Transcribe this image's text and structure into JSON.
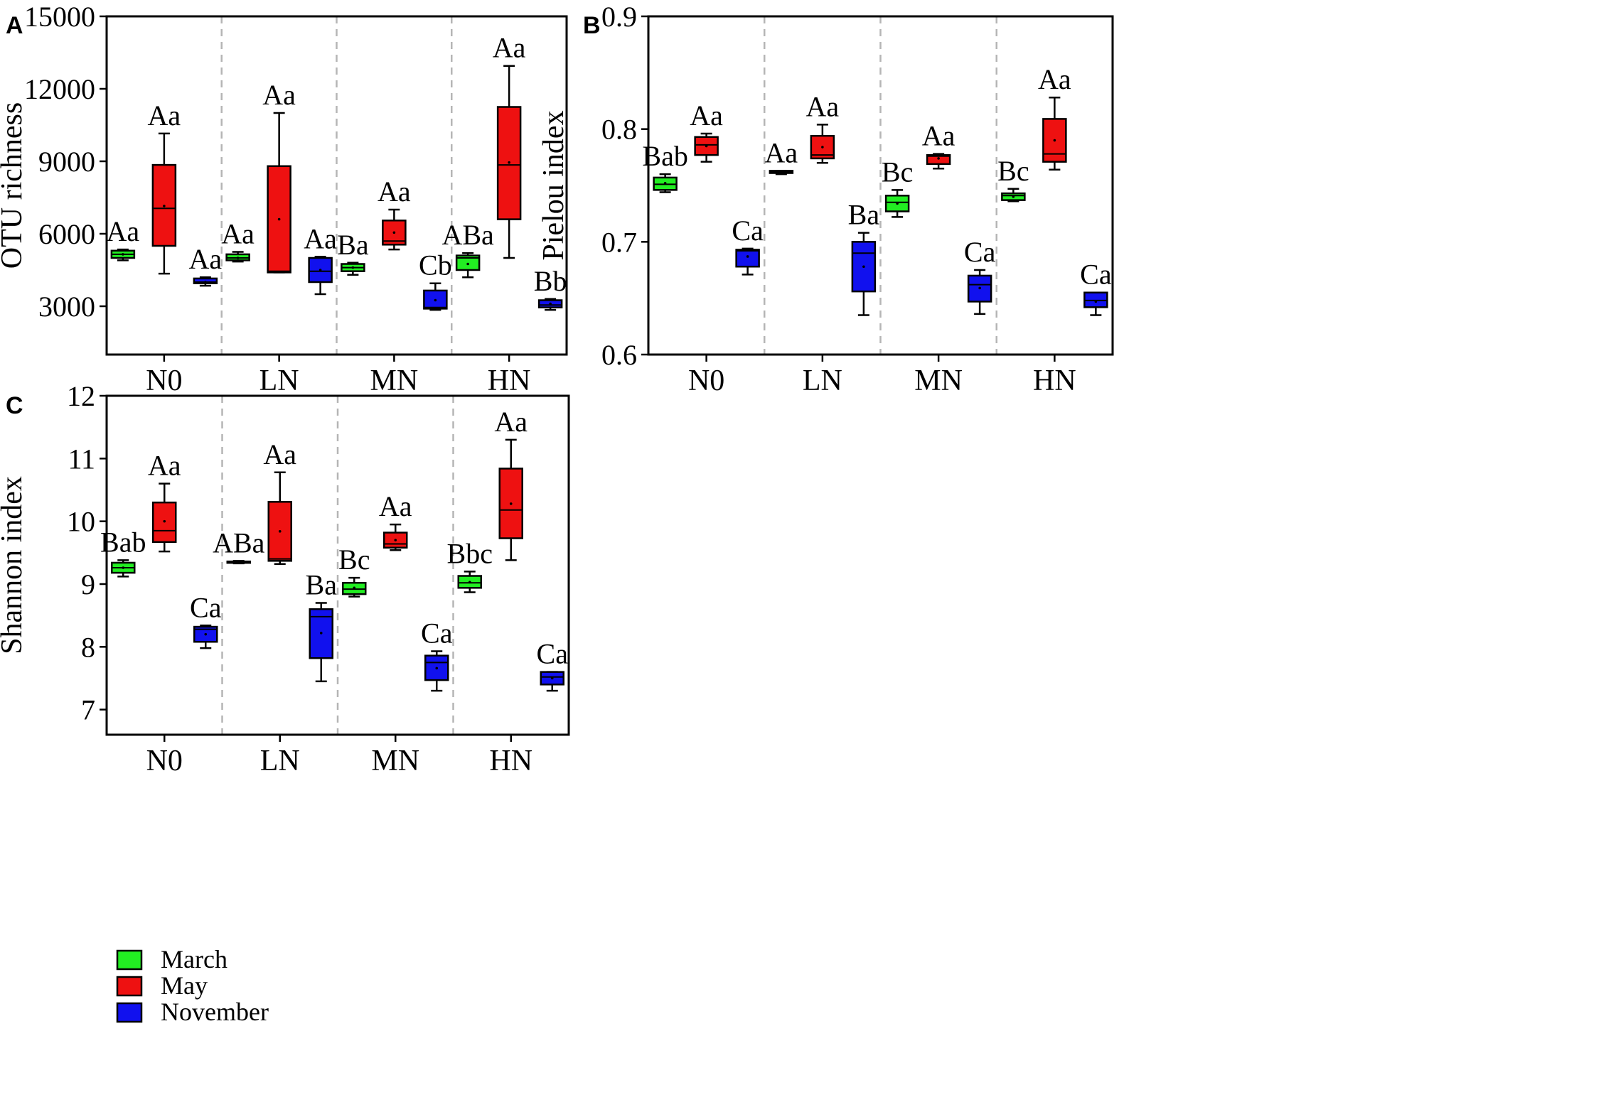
{
  "legend": {
    "items": [
      {
        "label": "March",
        "color": "#22ee22"
      },
      {
        "label": "May",
        "color": "#ee1111"
      },
      {
        "label": "November",
        "color": "#1111ee"
      }
    ]
  },
  "chart_data": [
    {
      "panel": "A",
      "type": "box",
      "ylabel": "OTU richness",
      "ylim": [
        1000,
        15000
      ],
      "yticks": [
        3000,
        6000,
        9000,
        12000,
        15000
      ],
      "ytick_labels": [
        "3000",
        "6000",
        "9000",
        "12000",
        "15000"
      ],
      "categories": [
        "N0",
        "LN",
        "MN",
        "HN"
      ],
      "grid": false,
      "series": [
        {
          "name": "March",
          "boxes": [
            {
              "min": 4900,
              "q1": 5000,
              "median": 5150,
              "q3": 5300,
              "max": 5350,
              "mean": 5150
            },
            {
              "min": 4850,
              "q1": 4900,
              "median": 5000,
              "q3": 5150,
              "max": 5250,
              "mean": 5000
            },
            {
              "min": 4300,
              "q1": 4450,
              "median": 4600,
              "q3": 4750,
              "max": 4800,
              "mean": 4600
            },
            {
              "min": 4200,
              "q1": 4500,
              "median": 5000,
              "q3": 5100,
              "max": 5200,
              "mean": 4750
            }
          ],
          "labels": [
            "Aa",
            "Aa",
            "Ba",
            "ABa"
          ]
        },
        {
          "name": "May",
          "boxes": [
            {
              "min": 4350,
              "q1": 5500,
              "median": 7050,
              "q3": 8850,
              "max": 10150,
              "mean": 7150
            },
            {
              "min": 4400,
              "q1": 4400,
              "median": 4450,
              "q3": 8800,
              "max": 11000,
              "mean": 6600
            },
            {
              "min": 5350,
              "q1": 5550,
              "median": 5700,
              "q3": 6550,
              "max": 7000,
              "mean": 6050
            },
            {
              "min": 5000,
              "q1": 6600,
              "median": 8850,
              "q3": 11250,
              "max": 12950,
              "mean": 8950
            }
          ],
          "labels": [
            "Aa",
            "Aa",
            "Aa",
            "Aa"
          ]
        },
        {
          "name": "November",
          "boxes": [
            {
              "min": 3850,
              "q1": 3950,
              "median": 4000,
              "q3": 4150,
              "max": 4200,
              "mean": 4000
            },
            {
              "min": 3500,
              "q1": 4000,
              "median": 4450,
              "q3": 5000,
              "max": 5050,
              "mean": 4500
            },
            {
              "min": 2850,
              "q1": 2900,
              "median": 2950,
              "q3": 3650,
              "max": 3950,
              "mean": 3250
            },
            {
              "min": 2850,
              "q1": 2950,
              "median": 3050,
              "q3": 3250,
              "max": 3300,
              "mean": 3100
            }
          ],
          "labels": [
            "Aa",
            "Aa",
            "Cb",
            "Bb"
          ]
        }
      ]
    },
    {
      "panel": "B",
      "type": "box",
      "ylabel": "Pielou index",
      "ylim": [
        0.6,
        0.9
      ],
      "yticks": [
        0.6,
        0.7,
        0.8,
        0.9
      ],
      "ytick_labels": [
        "0.6",
        "0.7",
        "0.8",
        "0.9"
      ],
      "categories": [
        "N0",
        "LN",
        "MN",
        "HN"
      ],
      "grid": false,
      "series": [
        {
          "name": "March",
          "boxes": [
            {
              "min": 0.744,
              "q1": 0.746,
              "median": 0.751,
              "q3": 0.757,
              "max": 0.76,
              "mean": 0.752
            },
            {
              "min": 0.76,
              "q1": 0.761,
              "median": 0.762,
              "q3": 0.763,
              "max": 0.763,
              "mean": 0.762
            },
            {
              "min": 0.722,
              "q1": 0.727,
              "median": 0.735,
              "q3": 0.741,
              "max": 0.746,
              "mean": 0.734
            },
            {
              "min": 0.736,
              "q1": 0.737,
              "median": 0.741,
              "q3": 0.743,
              "max": 0.747,
              "mean": 0.74
            }
          ],
          "labels": [
            "Bab",
            "Aa",
            "Bc",
            "Bc"
          ]
        },
        {
          "name": "May",
          "boxes": [
            {
              "min": 0.771,
              "q1": 0.777,
              "median": 0.786,
              "q3": 0.793,
              "max": 0.796,
              "mean": 0.785
            },
            {
              "min": 0.77,
              "q1": 0.774,
              "median": 0.777,
              "q3": 0.794,
              "max": 0.804,
              "mean": 0.784
            },
            {
              "min": 0.765,
              "q1": 0.769,
              "median": 0.776,
              "q3": 0.777,
              "max": 0.778,
              "mean": 0.774
            },
            {
              "min": 0.764,
              "q1": 0.771,
              "median": 0.778,
              "q3": 0.809,
              "max": 0.828,
              "mean": 0.79
            }
          ],
          "labels": [
            "Aa",
            "Aa",
            "Aa",
            "Aa"
          ]
        },
        {
          "name": "November",
          "boxes": [
            {
              "min": 0.671,
              "q1": 0.678,
              "median": 0.692,
              "q3": 0.693,
              "max": 0.694,
              "mean": 0.687
            },
            {
              "min": 0.635,
              "q1": 0.656,
              "median": 0.69,
              "q3": 0.7,
              "max": 0.708,
              "mean": 0.678
            },
            {
              "min": 0.636,
              "q1": 0.647,
              "median": 0.662,
              "q3": 0.67,
              "max": 0.675,
              "mean": 0.659
            },
            {
              "min": 0.635,
              "q1": 0.642,
              "median": 0.648,
              "q3": 0.655,
              "max": 0.655,
              "mean": 0.647
            }
          ],
          "labels": [
            "Ca",
            "Ba",
            "Ca",
            "Ca"
          ]
        }
      ]
    },
    {
      "panel": "C",
      "type": "box",
      "ylabel": "Shannon index",
      "ylim": [
        6.6,
        12
      ],
      "yticks": [
        7,
        8,
        9,
        10,
        11,
        12
      ],
      "ytick_labels": [
        "7",
        "8",
        "9",
        "10",
        "11",
        "12"
      ],
      "categories": [
        "N0",
        "LN",
        "MN",
        "HN"
      ],
      "grid": false,
      "series": [
        {
          "name": "March",
          "boxes": [
            {
              "min": 9.12,
              "q1": 9.18,
              "median": 9.26,
              "q3": 9.34,
              "max": 9.38,
              "mean": 9.26
            },
            {
              "min": 9.33,
              "q1": 9.34,
              "median": 9.35,
              "q3": 9.36,
              "max": 9.37,
              "mean": 9.35
            },
            {
              "min": 8.8,
              "q1": 8.84,
              "median": 8.92,
              "q3": 9.02,
              "max": 9.1,
              "mean": 8.94
            },
            {
              "min": 8.87,
              "q1": 8.94,
              "median": 9.02,
              "q3": 9.13,
              "max": 9.2,
              "mean": 9.03
            }
          ],
          "labels": [
            "Bab",
            "ABa",
            "Bc",
            "Bbc"
          ]
        },
        {
          "name": "May",
          "boxes": [
            {
              "min": 9.52,
              "q1": 9.67,
              "median": 9.85,
              "q3": 10.3,
              "max": 10.6,
              "mean": 10.0
            },
            {
              "min": 9.32,
              "q1": 9.37,
              "median": 9.4,
              "q3": 10.31,
              "max": 10.78,
              "mean": 9.84
            },
            {
              "min": 9.54,
              "q1": 9.58,
              "median": 9.64,
              "q3": 9.82,
              "max": 9.95,
              "mean": 9.7
            },
            {
              "min": 9.38,
              "q1": 9.73,
              "median": 10.18,
              "q3": 10.84,
              "max": 11.3,
              "mean": 10.28
            }
          ],
          "labels": [
            "Aa",
            "Aa",
            "Aa",
            "Aa"
          ]
        },
        {
          "name": "November",
          "boxes": [
            {
              "min": 7.98,
              "q1": 8.08,
              "median": 8.28,
              "q3": 8.32,
              "max": 8.34,
              "mean": 8.2
            },
            {
              "min": 7.45,
              "q1": 7.82,
              "median": 8.48,
              "q3": 8.6,
              "max": 8.7,
              "mean": 8.22
            },
            {
              "min": 7.3,
              "q1": 7.47,
              "median": 7.75,
              "q3": 7.86,
              "max": 7.93,
              "mean": 7.66
            },
            {
              "min": 7.3,
              "q1": 7.4,
              "median": 7.52,
              "q3": 7.6,
              "max": 7.6,
              "mean": 7.5
            }
          ],
          "labels": [
            "Ca",
            "Ba",
            "Ca",
            "Ca"
          ]
        }
      ]
    }
  ]
}
